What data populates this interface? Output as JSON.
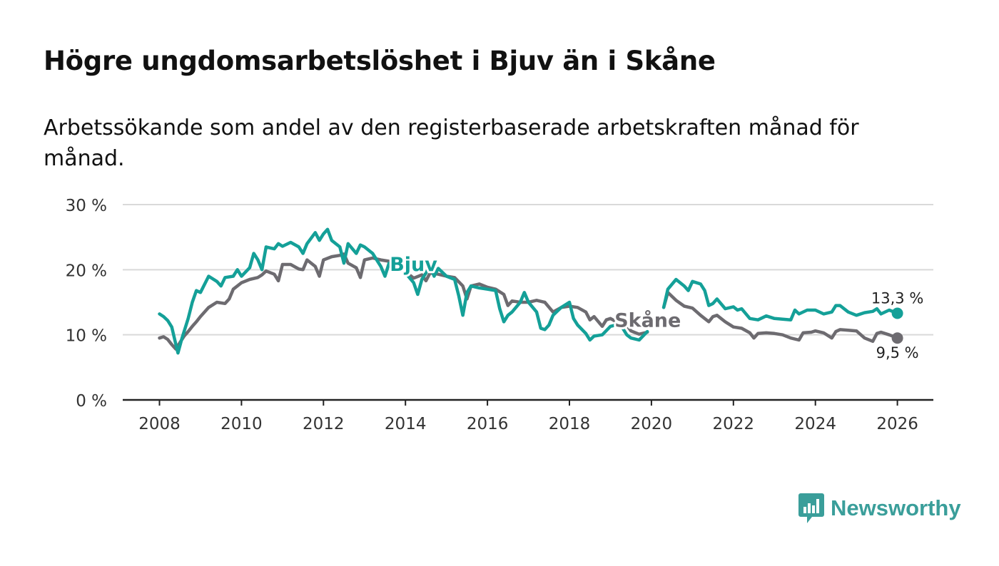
{
  "header": {
    "title": "Högre ungdomsarbetslöshet i Bjuv än i Skåne",
    "subtitle": "Arbetssökande som andel av den registerbaserade arbetskraften månad för månad."
  },
  "brand": {
    "name": "Newsworthy",
    "color": "#3a9e9a",
    "icon": "newsworthy-logo-icon"
  },
  "chart_data": {
    "type": "line",
    "title": "Högre ungdomsarbetslöshet i Bjuv än i Skåne",
    "subtitle": "Arbetssökande som andel av den registerbaserade arbetskraften månad för månad.",
    "xlabel": "",
    "ylabel": "",
    "xlim": [
      2007.4,
      2026.9
    ],
    "ylim": [
      0,
      30
    ],
    "x_ticks": [
      2008,
      2010,
      2012,
      2014,
      2016,
      2018,
      2020,
      2022,
      2024,
      2026
    ],
    "x_tick_labels": [
      "2008",
      "2010",
      "2012",
      "2014",
      "2016",
      "2018",
      "2020",
      "2022",
      "2024",
      "2026"
    ],
    "y_ticks": [
      0,
      10,
      20,
      30
    ],
    "y_tick_labels": [
      "0 %",
      "10 %",
      "20 %",
      "30 %"
    ],
    "grid": true,
    "series": [
      {
        "name": "Skåne",
        "label": "Skåne",
        "color": "#6d6b70",
        "end_label": "9,5 %",
        "points": [
          [
            2008.0,
            9.5
          ],
          [
            2008.1,
            9.7
          ],
          [
            2008.2,
            9.3
          ],
          [
            2008.3,
            8.5
          ],
          [
            2008.4,
            7.8
          ],
          [
            2008.5,
            8.8
          ],
          [
            2008.6,
            9.8
          ],
          [
            2008.7,
            10.5
          ],
          [
            2008.8,
            11.3
          ],
          [
            2008.9,
            12.0
          ],
          [
            2009.0,
            12.8
          ],
          [
            2009.2,
            14.2
          ],
          [
            2009.4,
            15.0
          ],
          [
            2009.6,
            14.8
          ],
          [
            2009.7,
            15.5
          ],
          [
            2009.8,
            17.0
          ],
          [
            2010.0,
            18.0
          ],
          [
            2010.2,
            18.5
          ],
          [
            2010.4,
            18.8
          ],
          [
            2010.5,
            19.2
          ],
          [
            2010.6,
            19.8
          ],
          [
            2010.8,
            19.3
          ],
          [
            2010.9,
            18.3
          ],
          [
            2011.0,
            20.8
          ],
          [
            2011.2,
            20.8
          ],
          [
            2011.4,
            20.1
          ],
          [
            2011.5,
            20.0
          ],
          [
            2011.6,
            21.5
          ],
          [
            2011.8,
            20.5
          ],
          [
            2011.9,
            19.0
          ],
          [
            2012.0,
            21.5
          ],
          [
            2012.2,
            22.0
          ],
          [
            2012.4,
            22.2
          ],
          [
            2012.5,
            22.4
          ],
          [
            2012.6,
            21.0
          ],
          [
            2012.8,
            20.3
          ],
          [
            2012.9,
            18.8
          ],
          [
            2013.0,
            21.5
          ],
          [
            2013.2,
            21.8
          ],
          [
            2013.4,
            21.5
          ],
          [
            2013.6,
            21.3
          ],
          [
            2013.8,
            20.8
          ],
          [
            2013.9,
            20.0
          ],
          [
            2014.0,
            19.8
          ],
          [
            2014.1,
            19.2
          ],
          [
            2014.2,
            18.7
          ],
          [
            2014.4,
            19.2
          ],
          [
            2014.5,
            18.3
          ],
          [
            2014.6,
            19.5
          ],
          [
            2014.8,
            19.3
          ],
          [
            2015.0,
            19.0
          ],
          [
            2015.2,
            18.8
          ],
          [
            2015.4,
            17.5
          ],
          [
            2015.5,
            15.5
          ],
          [
            2015.6,
            17.5
          ],
          [
            2015.8,
            17.8
          ],
          [
            2016.0,
            17.3
          ],
          [
            2016.2,
            17.0
          ],
          [
            2016.4,
            16.2
          ],
          [
            2016.5,
            14.5
          ],
          [
            2016.6,
            15.2
          ],
          [
            2016.8,
            15.0
          ],
          [
            2017.0,
            15.0
          ],
          [
            2017.2,
            15.3
          ],
          [
            2017.4,
            15.0
          ],
          [
            2017.6,
            13.5
          ],
          [
            2017.8,
            14.2
          ],
          [
            2018.0,
            14.4
          ],
          [
            2018.2,
            14.2
          ],
          [
            2018.4,
            13.5
          ],
          [
            2018.5,
            12.3
          ],
          [
            2018.6,
            12.8
          ],
          [
            2018.8,
            11.3
          ],
          [
            2018.9,
            12.3
          ],
          [
            2019.0,
            12.5
          ],
          [
            2019.2,
            11.8
          ],
          [
            2019.4,
            11.5
          ],
          [
            2019.5,
            10.6
          ],
          [
            2019.7,
            10.1
          ],
          [
            2019.9,
            10.4
          ],
          null,
          [
            2020.3,
            14.2
          ],
          [
            2020.4,
            16.5
          ],
          [
            2020.6,
            15.3
          ],
          [
            2020.8,
            14.4
          ],
          [
            2021.0,
            14.1
          ],
          [
            2021.2,
            13.0
          ],
          [
            2021.4,
            12.0
          ],
          [
            2021.5,
            12.8
          ],
          [
            2021.6,
            13.0
          ],
          [
            2021.8,
            12.0
          ],
          [
            2022.0,
            11.2
          ],
          [
            2022.2,
            11.0
          ],
          [
            2022.4,
            10.3
          ],
          [
            2022.5,
            9.5
          ],
          [
            2022.6,
            10.2
          ],
          [
            2022.8,
            10.3
          ],
          [
            2023.0,
            10.2
          ],
          [
            2023.2,
            10.0
          ],
          [
            2023.4,
            9.5
          ],
          [
            2023.6,
            9.2
          ],
          [
            2023.7,
            10.3
          ],
          [
            2023.9,
            10.4
          ],
          [
            2024.0,
            10.6
          ],
          [
            2024.2,
            10.3
          ],
          [
            2024.4,
            9.5
          ],
          [
            2024.5,
            10.5
          ],
          [
            2024.6,
            10.8
          ],
          [
            2024.8,
            10.7
          ],
          [
            2025.0,
            10.6
          ],
          [
            2025.2,
            9.5
          ],
          [
            2025.4,
            9.0
          ],
          [
            2025.5,
            10.2
          ],
          [
            2025.6,
            10.4
          ],
          [
            2025.8,
            10.0
          ],
          [
            2026.0,
            9.5
          ]
        ]
      },
      {
        "name": "Bjuv",
        "label": "Bjuv",
        "color": "#14a098",
        "end_label": "13,3 %",
        "points": [
          [
            2008.0,
            13.2
          ],
          [
            2008.1,
            12.8
          ],
          [
            2008.2,
            12.2
          ],
          [
            2008.3,
            11.2
          ],
          [
            2008.4,
            8.5
          ],
          [
            2008.45,
            7.2
          ],
          [
            2008.55,
            9.5
          ],
          [
            2008.7,
            12.5
          ],
          [
            2008.8,
            15.0
          ],
          [
            2008.9,
            16.8
          ],
          [
            2009.0,
            16.5
          ],
          [
            2009.2,
            19.0
          ],
          [
            2009.4,
            18.2
          ],
          [
            2009.5,
            17.5
          ],
          [
            2009.6,
            18.8
          ],
          [
            2009.8,
            19.0
          ],
          [
            2009.9,
            20.0
          ],
          [
            2010.0,
            19.0
          ],
          [
            2010.2,
            20.3
          ],
          [
            2010.3,
            22.5
          ],
          [
            2010.4,
            21.5
          ],
          [
            2010.5,
            20.0
          ],
          [
            2010.6,
            23.5
          ],
          [
            2010.8,
            23.2
          ],
          [
            2010.9,
            24.0
          ],
          [
            2011.0,
            23.6
          ],
          [
            2011.2,
            24.2
          ],
          [
            2011.4,
            23.5
          ],
          [
            2011.5,
            22.5
          ],
          [
            2011.6,
            24.0
          ],
          [
            2011.8,
            25.7
          ],
          [
            2011.9,
            24.5
          ],
          [
            2012.0,
            25.5
          ],
          [
            2012.1,
            26.2
          ],
          [
            2012.2,
            24.5
          ],
          [
            2012.4,
            23.5
          ],
          [
            2012.5,
            21.0
          ],
          [
            2012.6,
            24.0
          ],
          [
            2012.8,
            22.5
          ],
          [
            2012.9,
            23.8
          ],
          [
            2013.0,
            23.5
          ],
          [
            2013.2,
            22.5
          ],
          [
            2013.4,
            20.5
          ],
          [
            2013.5,
            19.0
          ],
          [
            2013.6,
            21.0
          ],
          null,
          [
            2014.0,
            19.5
          ],
          [
            2014.2,
            18.0
          ],
          [
            2014.3,
            16.2
          ],
          [
            2014.4,
            18.5
          ],
          [
            2014.6,
            20.5
          ],
          [
            2014.7,
            19.0
          ],
          [
            2014.8,
            20.2
          ],
          [
            2015.0,
            19.0
          ],
          [
            2015.2,
            18.5
          ],
          [
            2015.3,
            16.0
          ],
          [
            2015.4,
            13.0
          ],
          [
            2015.5,
            16.5
          ],
          [
            2015.6,
            17.5
          ],
          [
            2015.8,
            17.2
          ],
          [
            2016.0,
            17.0
          ],
          [
            2016.2,
            16.8
          ],
          [
            2016.3,
            14.0
          ],
          [
            2016.4,
            12.0
          ],
          [
            2016.5,
            13.0
          ],
          [
            2016.6,
            13.5
          ],
          [
            2016.8,
            15.0
          ],
          [
            2016.9,
            16.5
          ],
          [
            2017.0,
            15.0
          ],
          [
            2017.2,
            13.5
          ],
          [
            2017.3,
            11.0
          ],
          [
            2017.4,
            10.8
          ],
          [
            2017.5,
            11.5
          ],
          [
            2017.6,
            13.0
          ],
          [
            2017.8,
            14.2
          ],
          [
            2018.0,
            15.0
          ],
          [
            2018.1,
            12.5
          ],
          [
            2018.2,
            11.5
          ],
          [
            2018.4,
            10.2
          ],
          [
            2018.5,
            9.2
          ],
          [
            2018.6,
            9.8
          ],
          [
            2018.8,
            10.0
          ],
          [
            2019.0,
            11.3
          ],
          [
            2019.2,
            11.6
          ],
          [
            2019.3,
            11.0
          ],
          [
            2019.4,
            10.0
          ],
          [
            2019.5,
            9.5
          ],
          [
            2019.7,
            9.2
          ],
          [
            2019.9,
            10.5
          ],
          null,
          [
            2020.3,
            14.2
          ],
          [
            2020.4,
            17.0
          ],
          [
            2020.6,
            18.5
          ],
          [
            2020.8,
            17.5
          ],
          [
            2020.9,
            16.8
          ],
          [
            2021.0,
            18.2
          ],
          [
            2021.2,
            17.8
          ],
          [
            2021.3,
            16.8
          ],
          [
            2021.4,
            14.5
          ],
          [
            2021.5,
            14.8
          ],
          [
            2021.6,
            15.5
          ],
          [
            2021.8,
            14.0
          ],
          [
            2022.0,
            14.3
          ],
          [
            2022.1,
            13.8
          ],
          [
            2022.2,
            14.0
          ],
          [
            2022.4,
            12.5
          ],
          [
            2022.6,
            12.3
          ],
          [
            2022.8,
            12.9
          ],
          [
            2023.0,
            12.5
          ],
          [
            2023.2,
            12.4
          ],
          [
            2023.4,
            12.3
          ],
          [
            2023.5,
            13.8
          ],
          [
            2023.6,
            13.2
          ],
          [
            2023.8,
            13.8
          ],
          [
            2024.0,
            13.8
          ],
          [
            2024.2,
            13.2
          ],
          [
            2024.4,
            13.5
          ],
          [
            2024.5,
            14.5
          ],
          [
            2024.6,
            14.5
          ],
          [
            2024.8,
            13.5
          ],
          [
            2025.0,
            13.0
          ],
          [
            2025.2,
            13.4
          ],
          [
            2025.4,
            13.6
          ],
          [
            2025.5,
            14.0
          ],
          [
            2025.6,
            13.2
          ],
          [
            2025.8,
            13.8
          ],
          [
            2026.0,
            13.3
          ]
        ]
      }
    ]
  }
}
